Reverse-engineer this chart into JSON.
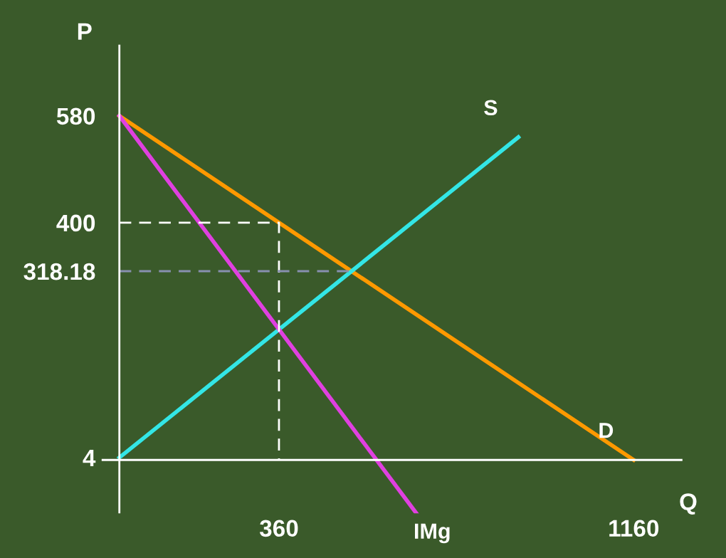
{
  "chart_data": {
    "type": "line",
    "xlabel": "Q",
    "ylabel": "P",
    "xlim": [
      -40,
      1270
    ],
    "ylim": [
      -90,
      700
    ],
    "xticks": [
      360,
      1160
    ],
    "yticks": [
      4,
      318.18,
      400,
      580
    ],
    "grid": false,
    "legend": false,
    "marker": "none",
    "series": [
      {
        "name": "D",
        "color": "#ff9900",
        "x": [
          0,
          1160
        ],
        "values": [
          580,
          0
        ]
      },
      {
        "name": "S",
        "color": "#33e6e6",
        "x": [
          0,
          900
        ],
        "values": [
          4,
          544
        ]
      },
      {
        "name": "IMg",
        "color": "#e040e0",
        "x": [
          0,
          670
        ],
        "values": [
          580,
          -90
        ]
      },
      {
        "color": "#ffffff",
        "line_style": "dashed",
        "x": [
          0,
          360,
          360
        ],
        "values": [
          400,
          400,
          0
        ]
      },
      {
        "color": "#8890b0",
        "line_style": "dashed",
        "x": [
          0,
          523.6
        ],
        "values": [
          318.18,
          318.18
        ]
      }
    ]
  }
}
